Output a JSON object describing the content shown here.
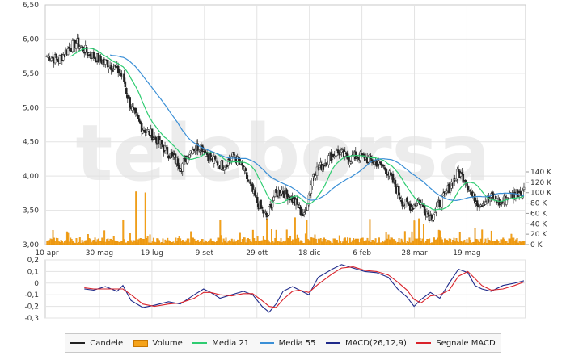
{
  "watermark": "teleborsa",
  "colors": {
    "candle": "#222222",
    "volume": "#f5a31a",
    "ma21": "#2ecc71",
    "ma55": "#3a8fd6",
    "macd": "#1f2a8a",
    "signal": "#d9222a",
    "grid": "#e3e3e3"
  },
  "legend": [
    {
      "label": "Candele",
      "kind": "line",
      "color": "#222222"
    },
    {
      "label": "Volume",
      "kind": "box",
      "color": "#f5a31a"
    },
    {
      "label": "Media 21",
      "kind": "line",
      "color": "#2ecc71"
    },
    {
      "label": "Media 55",
      "kind": "line",
      "color": "#3a8fd6"
    },
    {
      "label": "MACD(26,12,9)",
      "kind": "line",
      "color": "#1f2a8a"
    },
    {
      "label": "Segnale MACD",
      "kind": "line",
      "color": "#d9222a"
    }
  ],
  "chart_data": [
    {
      "type": "line",
      "panel": "price",
      "x_ticks": [
        "10 apr",
        "30 mag",
        "19 lug",
        "9 set",
        "29 ott",
        "18 dic",
        "6 feb",
        "28 mar",
        "19 mag"
      ],
      "x_range": [
        0,
        408
      ],
      "y_ticks": [
        "3,00",
        "3,50",
        "4,00",
        "4,50",
        "5,00",
        "5,50",
        "6,00",
        "6,50"
      ],
      "ylim": [
        3.0,
        6.5
      ],
      "y2_ticks": [
        "0 K",
        "20 K",
        "40 K",
        "60 K",
        "80 K",
        "100 K",
        "120 K",
        "140 K"
      ],
      "y2lim": [
        0,
        140000
      ],
      "price_anchors": [
        [
          0,
          5.75
        ],
        [
          10,
          5.7
        ],
        [
          18,
          5.85
        ],
        [
          25,
          5.95
        ],
        [
          35,
          5.8
        ],
        [
          45,
          5.7
        ],
        [
          52,
          5.65
        ],
        [
          60,
          5.55
        ],
        [
          65,
          5.45
        ],
        [
          70,
          5.1
        ],
        [
          76,
          4.85
        ],
        [
          82,
          4.7
        ],
        [
          90,
          4.6
        ],
        [
          98,
          4.45
        ],
        [
          106,
          4.3
        ],
        [
          115,
          4.15
        ],
        [
          124,
          4.4
        ],
        [
          132,
          4.45
        ],
        [
          140,
          4.25
        ],
        [
          150,
          4.15
        ],
        [
          160,
          4.3
        ],
        [
          168,
          4.1
        ],
        [
          175,
          3.8
        ],
        [
          182,
          3.55
        ],
        [
          188,
          3.4
        ],
        [
          194,
          3.7
        ],
        [
          200,
          3.8
        ],
        [
          208,
          3.7
        ],
        [
          215,
          3.55
        ],
        [
          220,
          3.4
        ],
        [
          223,
          3.65
        ],
        [
          228,
          4.05
        ],
        [
          235,
          4.15
        ],
        [
          243,
          4.3
        ],
        [
          250,
          4.35
        ],
        [
          258,
          4.25
        ],
        [
          266,
          4.3
        ],
        [
          274,
          4.25
        ],
        [
          282,
          4.2
        ],
        [
          290,
          4.1
        ],
        [
          298,
          3.85
        ],
        [
          305,
          3.6
        ],
        [
          312,
          3.55
        ],
        [
          318,
          3.65
        ],
        [
          324,
          3.5
        ],
        [
          328,
          3.4
        ],
        [
          334,
          3.55
        ],
        [
          340,
          3.7
        ],
        [
          346,
          3.9
        ],
        [
          352,
          4.05
        ],
        [
          358,
          3.95
        ],
        [
          364,
          3.7
        ],
        [
          370,
          3.6
        ],
        [
          376,
          3.65
        ],
        [
          382,
          3.7
        ],
        [
          388,
          3.6
        ],
        [
          394,
          3.7
        ],
        [
          400,
          3.75
        ],
        [
          408,
          3.8
        ]
      ],
      "series": [
        {
          "name": "Candele",
          "kind": "candles"
        },
        {
          "name": "Media 21",
          "kind": "ma",
          "window": 21
        },
        {
          "name": "Media 55",
          "kind": "ma",
          "window": 55
        },
        {
          "name": "Volume",
          "kind": "bars",
          "axis": "y2"
        }
      ],
      "volume_spikes": [
        [
          18,
          22000
        ],
        [
          65,
          48000
        ],
        [
          76,
          102000
        ],
        [
          84,
          100000
        ],
        [
          148,
          48000
        ],
        [
          176,
          28000
        ],
        [
          188,
          50000
        ],
        [
          196,
          28000
        ],
        [
          212,
          52000
        ],
        [
          222,
          48000
        ],
        [
          276,
          49000
        ],
        [
          314,
          46000
        ],
        [
          318,
          50000
        ],
        [
          322,
          40000
        ],
        [
          335,
          28000
        ]
      ]
    },
    {
      "type": "line",
      "panel": "macd",
      "y_ticks": [
        "0,2",
        "0,1",
        "0",
        "-0,1",
        "-0,2",
        "-0,3"
      ],
      "ylim": [
        -0.3,
        0.2
      ],
      "x_range": [
        32,
        408
      ],
      "series": [
        {
          "name": "MACD(26,12,9)",
          "values": [
            [
              32,
              -0.05
            ],
            [
              40,
              -0.06
            ],
            [
              50,
              -0.03
            ],
            [
              60,
              -0.07
            ],
            [
              65,
              -0.02
            ],
            [
              72,
              -0.15
            ],
            [
              82,
              -0.21
            ],
            [
              92,
              -0.19
            ],
            [
              104,
              -0.16
            ],
            [
              114,
              -0.18
            ],
            [
              126,
              -0.1
            ],
            [
              134,
              -0.05
            ],
            [
              140,
              -0.08
            ],
            [
              148,
              -0.13
            ],
            [
              158,
              -0.1
            ],
            [
              168,
              -0.07
            ],
            [
              176,
              -0.1
            ],
            [
              184,
              -0.2
            ],
            [
              190,
              -0.25
            ],
            [
              196,
              -0.18
            ],
            [
              202,
              -0.07
            ],
            [
              210,
              -0.03
            ],
            [
              216,
              -0.06
            ],
            [
              224,
              -0.1
            ],
            [
              232,
              0.05
            ],
            [
              244,
              0.12
            ],
            [
              252,
              0.16
            ],
            [
              262,
              0.13
            ],
            [
              272,
              0.1
            ],
            [
              282,
              0.09
            ],
            [
              292,
              0.05
            ],
            [
              300,
              -0.05
            ],
            [
              308,
              -0.12
            ],
            [
              314,
              -0.2
            ],
            [
              320,
              -0.14
            ],
            [
              328,
              -0.08
            ],
            [
              336,
              -0.13
            ],
            [
              344,
              0.0
            ],
            [
              352,
              0.12
            ],
            [
              360,
              0.09
            ],
            [
              366,
              -0.02
            ],
            [
              372,
              -0.05
            ],
            [
              380,
              -0.07
            ],
            [
              390,
              -0.02
            ],
            [
              400,
              0.0
            ],
            [
              408,
              0.02
            ]
          ]
        },
        {
          "name": "Segnale MACD",
          "values": [
            [
              32,
              -0.04
            ],
            [
              40,
              -0.05
            ],
            [
              50,
              -0.05
            ],
            [
              60,
              -0.05
            ],
            [
              65,
              -0.05
            ],
            [
              72,
              -0.1
            ],
            [
              82,
              -0.18
            ],
            [
              92,
              -0.2
            ],
            [
              104,
              -0.18
            ],
            [
              114,
              -0.17
            ],
            [
              126,
              -0.13
            ],
            [
              134,
              -0.08
            ],
            [
              140,
              -0.08
            ],
            [
              148,
              -0.1
            ],
            [
              158,
              -0.11
            ],
            [
              168,
              -0.09
            ],
            [
              176,
              -0.09
            ],
            [
              184,
              -0.15
            ],
            [
              190,
              -0.2
            ],
            [
              196,
              -0.21
            ],
            [
              202,
              -0.14
            ],
            [
              210,
              -0.07
            ],
            [
              216,
              -0.06
            ],
            [
              224,
              -0.08
            ],
            [
              232,
              -0.01
            ],
            [
              244,
              0.08
            ],
            [
              252,
              0.13
            ],
            [
              262,
              0.14
            ],
            [
              272,
              0.11
            ],
            [
              282,
              0.1
            ],
            [
              292,
              0.07
            ],
            [
              300,
              0.01
            ],
            [
              308,
              -0.06
            ],
            [
              314,
              -0.14
            ],
            [
              320,
              -0.17
            ],
            [
              328,
              -0.11
            ],
            [
              336,
              -0.1
            ],
            [
              344,
              -0.06
            ],
            [
              352,
              0.06
            ],
            [
              360,
              0.1
            ],
            [
              366,
              0.04
            ],
            [
              372,
              -0.02
            ],
            [
              380,
              -0.06
            ],
            [
              390,
              -0.05
            ],
            [
              400,
              -0.02
            ],
            [
              408,
              0.01
            ]
          ]
        }
      ]
    }
  ]
}
